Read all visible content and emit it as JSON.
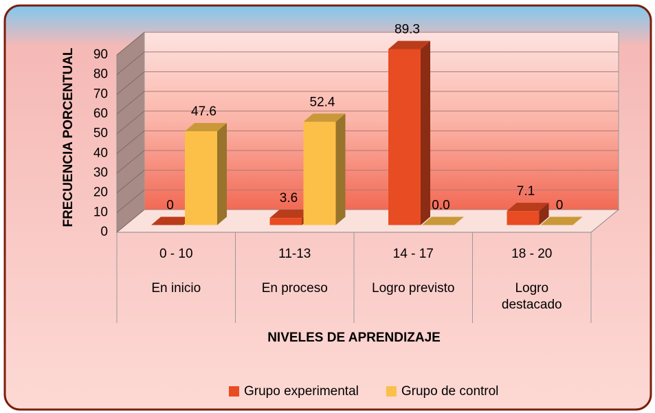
{
  "chart_data": {
    "type": "bar3d",
    "y_axis_label": "FRECUENCIA PORCENTUAL",
    "x_axis_label": "NIVELES DE APRENDIZAJE",
    "categories": [
      "0 - 10",
      "11-13",
      "14 - 17",
      "18 - 20"
    ],
    "category_groups": [
      "En inicio",
      "En proceso",
      "Logro previsto",
      "Logro destacado"
    ],
    "series": [
      {
        "name": "Grupo experimental",
        "color": "#e84c22",
        "values": [
          0,
          3.6,
          89.3,
          7.1
        ],
        "value_labels": [
          "0",
          "3.6",
          "89.3",
          "7.1"
        ]
      },
      {
        "name": "Grupo de control",
        "color": "#fcc048",
        "values": [
          47.6,
          52.4,
          0,
          0
        ],
        "value_labels": [
          "47.6",
          "52.4",
          "0.0",
          "0"
        ]
      }
    ],
    "ylim": [
      0,
      90
    ],
    "yticks": [
      0,
      10,
      20,
      30,
      40,
      50,
      60,
      70,
      80,
      90
    ],
    "grid": true,
    "legend": "bottom"
  }
}
